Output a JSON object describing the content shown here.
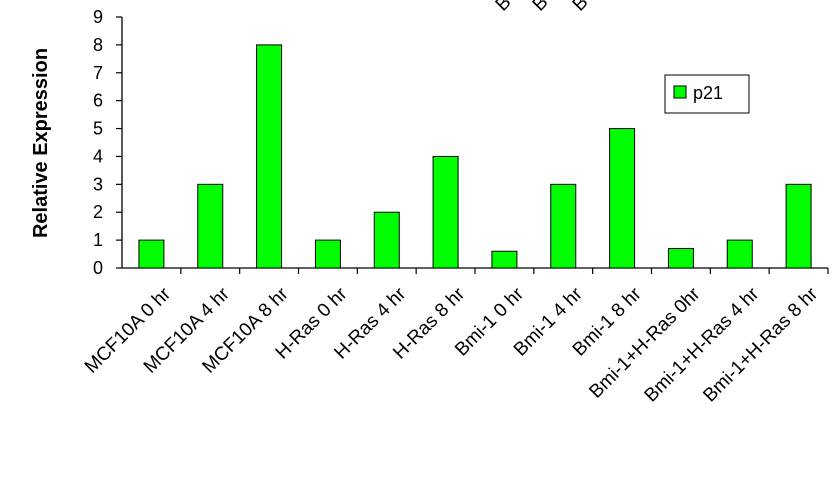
{
  "chart_data": {
    "type": "bar",
    "title": "",
    "xlabel": "",
    "ylabel": "Relative Expression",
    "ylim": [
      0,
      9
    ],
    "yticks": [
      0,
      1,
      2,
      3,
      4,
      5,
      6,
      7,
      8,
      9
    ],
    "grid": false,
    "legend_position": "top-right",
    "categories": [
      "MCF10A 0 hr",
      "MCF10A 4 hr",
      "MCF10A 8 hr",
      "H-Ras 0 hr",
      "H-Ras 4 hr",
      "H-Ras 8 hr",
      "Bmi-1 0 hr",
      "Bmi-1 4 hr",
      "Bmi-1 8 hr",
      "Bmi-1+H-Ras 0hr",
      "Bmi-1+H-Ras 4 hr",
      "Bmi-1+H-Ras 8 hr"
    ],
    "series": [
      {
        "name": "p21",
        "color": "#00ff00",
        "values": [
          1,
          3,
          8,
          1,
          2,
          4,
          0.6,
          3,
          5,
          0.7,
          1,
          3
        ]
      }
    ],
    "cropped_top_labels": [
      "B",
      "B",
      "B"
    ]
  }
}
